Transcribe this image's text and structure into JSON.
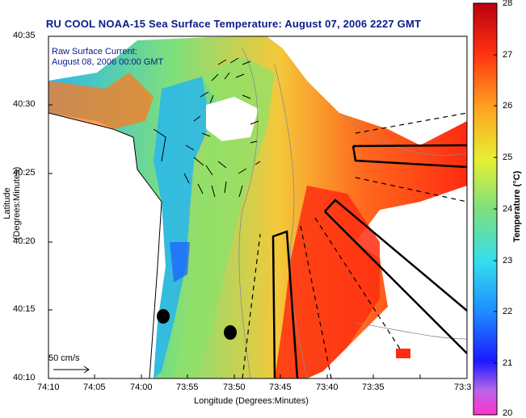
{
  "title": "RU COOL  NOAA-15  Sea Surface Temperature:  August 07, 2006 2227 GMT",
  "annotation": {
    "line1": "Raw Surface Current:",
    "line2": "August 08, 2006 00:00 GMT"
  },
  "x_axis": {
    "label": "Longitude (Degrees:Minutes)",
    "ticks": [
      "74:10",
      "74:05",
      "74:00",
      "73:55",
      "73:50",
      "73:45",
      "73:40",
      "73:35",
      "73:3"
    ]
  },
  "y_axis": {
    "label": "Latitude (Degrees:Minutes)",
    "ticks": [
      "40:35",
      "40:30",
      "40:25",
      "40:20",
      "40:15",
      "40:10"
    ]
  },
  "colorbar": {
    "label": "Temperature (°C)",
    "ticks": [
      "28",
      "27",
      "26",
      "25",
      "24",
      "23",
      "22",
      "21",
      "20"
    ]
  },
  "scale_arrow_label": "50 cm/s",
  "colors": {
    "title": "#0a1a8c",
    "land": "#ffffff",
    "outline": "#000000"
  }
}
